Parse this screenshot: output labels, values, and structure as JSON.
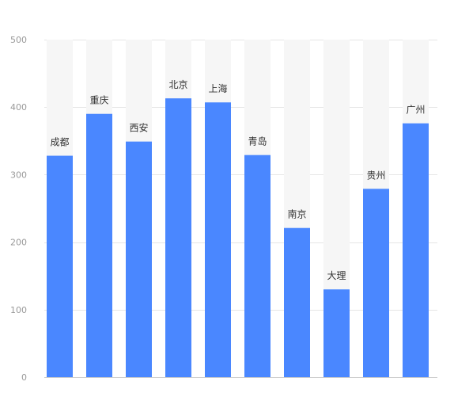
{
  "chart_data": {
    "type": "bar",
    "categories": [
      "成都",
      "重庆",
      "西安",
      "北京",
      "上海",
      "青岛",
      "南京",
      "大理",
      "贵州",
      "广州"
    ],
    "values": [
      328,
      390,
      349,
      413,
      407,
      329,
      221,
      130,
      279,
      376
    ],
    "series": [
      {
        "values": [
          328,
          390,
          349,
          413,
          407,
          329,
          221,
          130,
          279,
          376
        ]
      }
    ],
    "yticks": [
      "0",
      "100",
      "200",
      "300",
      "400",
      "500"
    ],
    "ylim": [
      0,
      500
    ],
    "grid": true,
    "legend": "none",
    "colors": {
      "bar": "#4a87ff",
      "track": "#f6f6f6",
      "grid": "#e6e6e6",
      "axis": "#cccccc"
    }
  }
}
